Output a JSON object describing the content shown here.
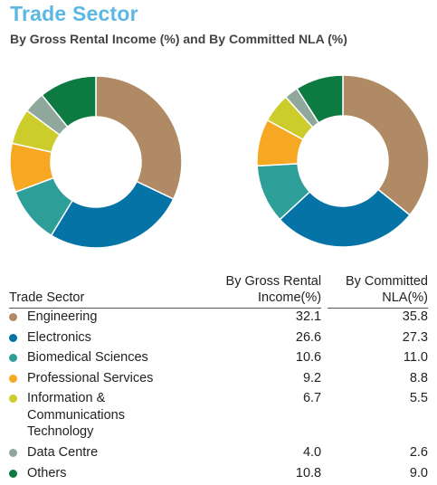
{
  "header": {
    "title": "Trade Sector",
    "subtitle": "By Gross Rental Income (%) and By Committed NLA (%)"
  },
  "table": {
    "col_sector": "Trade Sector",
    "col_gross": "By Gross Rental Income(%)",
    "col_nla": "By Committed NLA(%)"
  },
  "chart_data": [
    {
      "type": "pie",
      "variant": "donut",
      "title": "By Gross Rental Income (%)",
      "categories": [
        "Engineering",
        "Electronics",
        "Biomedical Sciences",
        "Professional Services",
        "Information & Communications Technology",
        "Data Centre",
        "Others"
      ],
      "values": [
        32.1,
        26.6,
        10.6,
        9.2,
        6.7,
        4.0,
        10.8
      ],
      "display_values": [
        "32.1",
        "26.6",
        "10.6",
        "9.2",
        "6.7",
        "4.0",
        "10.8"
      ],
      "colors": [
        "#b08a64",
        "#0673a6",
        "#2e9e98",
        "#f7a823",
        "#cccc2a",
        "#8fa89b",
        "#0d7a41"
      ]
    },
    {
      "type": "pie",
      "variant": "donut",
      "title": "By Committed NLA (%)",
      "categories": [
        "Engineering",
        "Electronics",
        "Biomedical Sciences",
        "Professional Services",
        "Information & Communications Technology",
        "Data Centre",
        "Others"
      ],
      "values": [
        35.8,
        27.3,
        11.0,
        8.8,
        5.5,
        2.6,
        9.0
      ],
      "display_values": [
        "35.8",
        "27.3",
        "11.0",
        "8.8",
        "5.5",
        "2.6",
        "9.0"
      ],
      "colors": [
        "#b08a64",
        "#0673a6",
        "#2e9e98",
        "#f7a823",
        "#cccc2a",
        "#8fa89b",
        "#0d7a41"
      ]
    }
  ]
}
